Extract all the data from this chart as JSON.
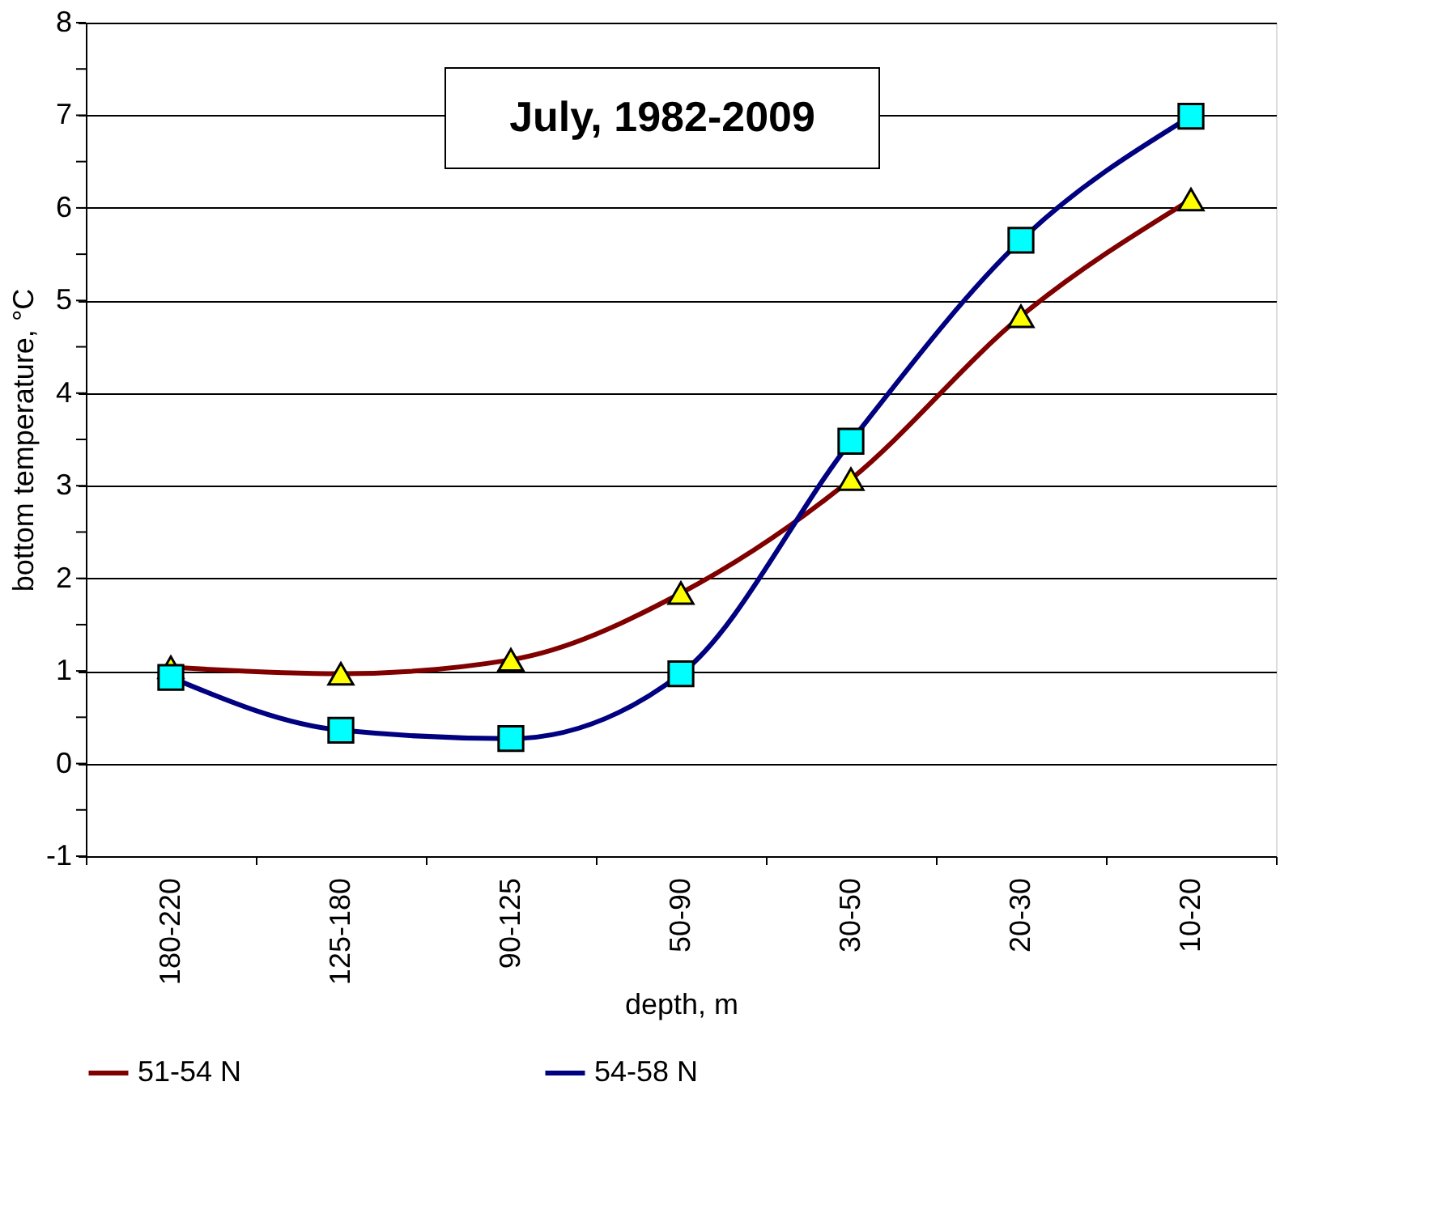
{
  "chart_data": {
    "type": "line",
    "title": "July, 1982-2009",
    "xlabel": "depth, m",
    "ylabel": "bottom temperature, °C",
    "categories": [
      "180-220",
      "125-180",
      "90-125",
      "50-90",
      "30-50",
      "20-30",
      "10-20"
    ],
    "series": [
      {
        "name": "51-54 N",
        "color": "#800000",
        "marker": "triangle",
        "colors": [
          "#ffff00",
          "#ffff00",
          "#ffff00",
          "#ffff00",
          "#ffff00",
          "#ffff00",
          "#ffff00"
        ],
        "values": [
          1.04,
          0.97,
          1.12,
          1.84,
          3.07,
          4.83,
          6.09
        ]
      },
      {
        "name": "54-58 N",
        "color": "#000080",
        "marker": "square",
        "colors": [
          "#00ffff",
          "#00ffff",
          "#00ffff",
          "#00ffff",
          "#00ffff",
          "#00ffff",
          "#00ffff"
        ],
        "values": [
          0.93,
          0.36,
          0.27,
          0.97,
          3.48,
          5.65,
          6.99
        ]
      }
    ],
    "ylim": [
      -1,
      8
    ],
    "yticks": [
      -1,
      {
        "value": -0.5,
        "label": null
      },
      0,
      {
        "value": 0.5,
        "label": null
      },
      1,
      {
        "value": 1.5,
        "label": null
      },
      2,
      {
        "value": 2.5,
        "label": null
      },
      3,
      {
        "value": 3.5,
        "label": null
      },
      4,
      {
        "value": 4.5,
        "label": null
      },
      5,
      {
        "value": 5.5,
        "label": null
      },
      6,
      {
        "value": 6.5,
        "label": null
      },
      7,
      {
        "value": 7.5,
        "label": null
      },
      8
    ],
    "grid": "y",
    "legend": "bottom",
    "line_style": "solid"
  }
}
